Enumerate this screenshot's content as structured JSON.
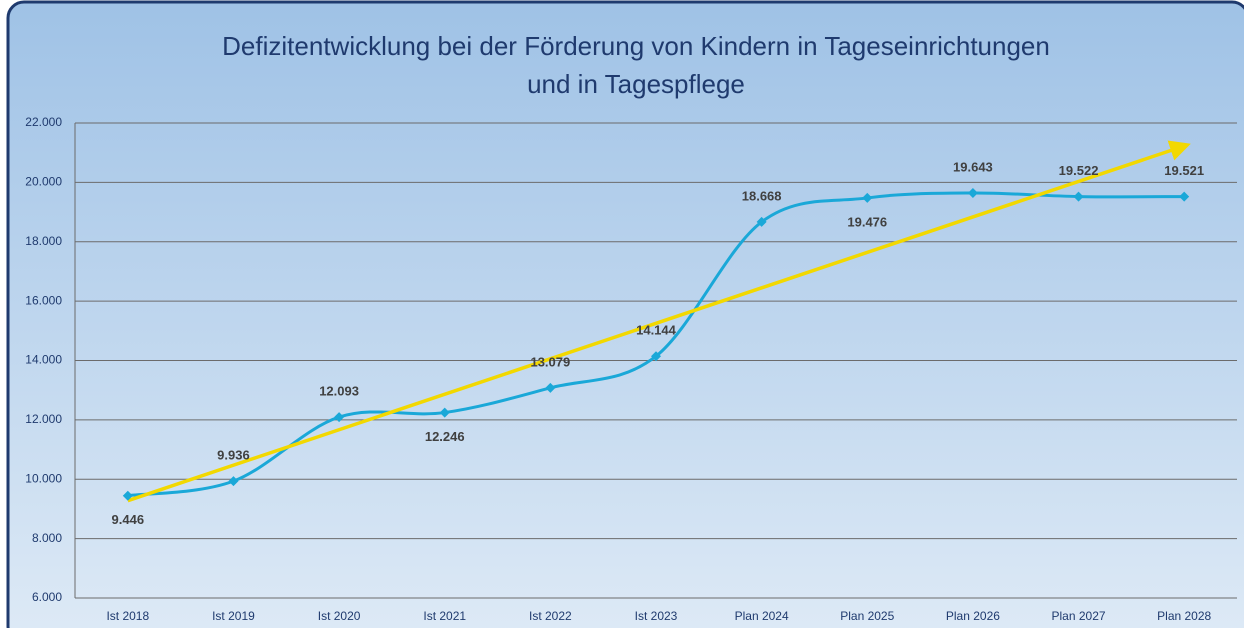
{
  "chart_data": {
    "type": "line",
    "title": [
      "Defizitentwicklung bei der Förderung von Kindern in Tageseinrichtungen",
      "und in Tagespflege"
    ],
    "categories": [
      "Ist 2018",
      "Ist 2019",
      "Ist 2020",
      "Ist 2021",
      "Ist 2022",
      "Ist 2023",
      "Plan 2024",
      "Plan 2025",
      "Plan 2026",
      "Plan 2027",
      "Plan 2028"
    ],
    "series": [
      {
        "color": "#1aa8d8",
        "values": [
          9446,
          9936,
          12093,
          12246,
          13079,
          14144,
          18668,
          19476,
          19643,
          19522,
          19521
        ],
        "value_labels": [
          "9.446",
          "9.936",
          "12.093",
          "12.246",
          "13.079",
          "14.144",
          "18.668",
          "19.476",
          "19.643",
          "19.522",
          "19.521"
        ]
      }
    ],
    "ylim": [
      6000,
      22000
    ],
    "yticks": [
      {
        "value": 6000,
        "label": "6.000"
      },
      {
        "value": 8000,
        "label": "8.000"
      },
      {
        "value": 10000,
        "label": "10.000"
      },
      {
        "value": 12000,
        "label": "12.000"
      },
      {
        "value": 14000,
        "label": "14.000"
      },
      {
        "value": 16000,
        "label": "16.000"
      },
      {
        "value": 18000,
        "label": "18.000"
      },
      {
        "value": 20000,
        "label": "20.000"
      },
      {
        "value": 22000,
        "label": "22.000"
      }
    ],
    "grid": true,
    "trendline": {
      "type": "linear",
      "color": "#f2d800"
    }
  }
}
